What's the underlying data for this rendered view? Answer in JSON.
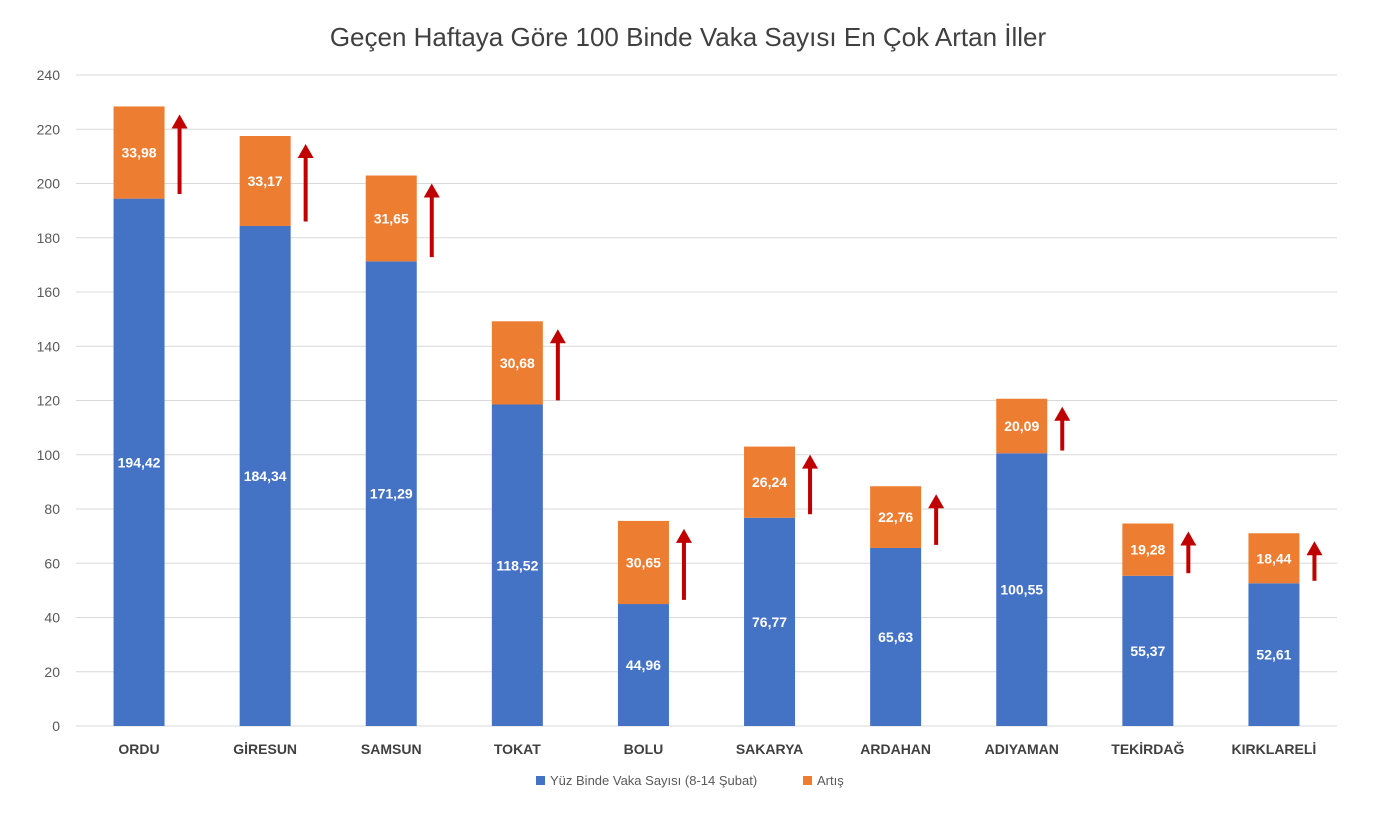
{
  "chart_data": {
    "type": "bar",
    "stacked": true,
    "title": "Geçen Haftaya Göre 100 Binde Vaka Sayısı En Çok Artan İller",
    "categories": [
      "ORDU",
      "GİRESUN",
      "SAMSUN",
      "TOKAT",
      "BOLU",
      "SAKARYA",
      "ARDAHAN",
      "ADIYAMAN",
      "TEKİRDAĞ",
      "KIRKLARELİ"
    ],
    "series": [
      {
        "name": "Yüz Binde Vaka Sayısı (8-14 Şubat)",
        "color": "#4472C4",
        "values": [
          194.42,
          184.34,
          171.29,
          118.52,
          44.96,
          76.77,
          65.63,
          100.55,
          55.37,
          52.61
        ],
        "labels": [
          "194,42",
          "184,34",
          "171,29",
          "118,52",
          "44,96",
          "76,77",
          "65,63",
          "100,55",
          "55,37",
          "52,61"
        ]
      },
      {
        "name": "Artış",
        "color": "#ED7D31",
        "values": [
          33.98,
          33.17,
          31.65,
          30.68,
          30.65,
          26.24,
          22.76,
          20.09,
          19.28,
          18.44
        ],
        "labels": [
          "33,98",
          "33,17",
          "31,65",
          "30,68",
          "30,65",
          "26,24",
          "22,76",
          "20,09",
          "19,28",
          "18,44"
        ]
      }
    ],
    "ylim": [
      0,
      240
    ],
    "yticks": [
      "0",
      "20",
      "40",
      "60",
      "80",
      "100",
      "120",
      "140",
      "160",
      "180",
      "200",
      "220",
      "240"
    ],
    "grid": true,
    "legend_position": "bottom",
    "annotation": {
      "type": "increase-arrow",
      "color": "#C00000"
    }
  }
}
